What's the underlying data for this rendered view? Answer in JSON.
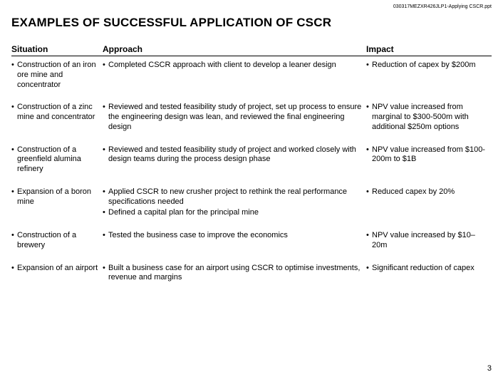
{
  "doc_id": "030317MEZXR426JLP1-Applying CSCR.ppt",
  "title": "EXAMPLES OF SUCCESSFUL APPLICATION OF CSCR",
  "page_number": "3",
  "columns": {
    "situation": "Situation",
    "approach": "Approach",
    "impact": "Impact"
  },
  "rows": [
    {
      "situation": [
        "Construction of an iron ore mine and concentrator"
      ],
      "approach": [
        "Completed CSCR approach with client to develop a leaner design"
      ],
      "impact": [
        "Reduction of capex by $200m"
      ]
    },
    {
      "situation": [
        "Construction of a zinc mine and concentrator"
      ],
      "approach": [
        "Reviewed and tested feasibility study of project, set up process to ensure the engineering design was lean, and reviewed the final engineering design"
      ],
      "impact": [
        "NPV value increased from marginal to $300-500m with additional $250m options"
      ]
    },
    {
      "situation": [
        "Construction of a greenfield alumina refinery"
      ],
      "approach": [
        "Reviewed and tested feasibility study of project and worked closely with design teams during the process design phase"
      ],
      "impact": [
        "NPV value increased from $100-200m to $1B"
      ]
    },
    {
      "situation": [
        "Expansion of a boron mine"
      ],
      "approach": [
        "Applied CSCR to new crusher project to rethink the real performance specifications needed",
        "Defined a capital plan for the principal mine"
      ],
      "impact": [
        "Reduced capex by 20%"
      ]
    },
    {
      "situation": [
        "Construction of a brewery"
      ],
      "approach": [
        "Tested the business case to improve the economics"
      ],
      "impact": [
        "NPV value increased by $10–20m"
      ]
    },
    {
      "situation": [
        "Expansion of an airport"
      ],
      "approach": [
        "Built a business case for an airport using CSCR to optimise investments, revenue and margins"
      ],
      "impact": [
        "Significant reduction of capex"
      ]
    }
  ]
}
